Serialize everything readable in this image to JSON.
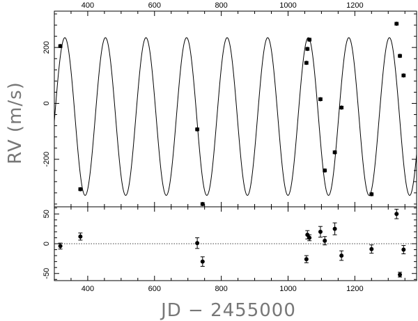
{
  "chart_data": [
    {
      "type": "scatter",
      "panel": "top",
      "ylabel": "RV (m/s)",
      "xlim": [
        300,
        1385
      ],
      "ylim": [
        -370,
        330
      ],
      "x_ticks": [
        400,
        600,
        800,
        1000,
        1200
      ],
      "x_tick_labels_on_top": [
        "400",
        "600",
        "800",
        "1000",
        "1200"
      ],
      "y_ticks": [
        -200,
        0,
        200
      ],
      "y_tick_labels": [
        "-200",
        "0",
        "200"
      ],
      "grid": false,
      "model_curve": {
        "type": "line",
        "period": 121.5,
        "amplitude": 282,
        "offset": -47,
        "x_peak": 453
      },
      "series": [
        {
          "x": [
            318,
            378,
            728,
            744,
            1055,
            1058,
            1064,
            1097,
            1110,
            1140,
            1160,
            1250,
            1325,
            1335,
            1346
          ],
          "y": [
            205,
            -307,
            -93,
            -360,
            145,
            195,
            228,
            15,
            -240,
            -175,
            -15,
            -325,
            285,
            170,
            100
          ],
          "yerr": [
            5,
            5,
            5,
            5,
            5,
            5,
            5,
            5,
            5,
            5,
            5,
            5,
            5,
            5,
            5
          ]
        }
      ]
    },
    {
      "type": "scatter",
      "panel": "bottom",
      "xlabel": "JD − 2455000",
      "xlim": [
        300,
        1385
      ],
      "ylim": [
        -62,
        62
      ],
      "x_ticks": [
        400,
        600,
        800,
        1000,
        1200
      ],
      "x_tick_labels": [
        "400",
        "600",
        "800",
        "1000",
        "1200"
      ],
      "y_ticks": [
        -50,
        0,
        50
      ],
      "y_tick_labels": [
        "-50",
        "0",
        "50"
      ],
      "zero_line": "dotted",
      "series": [
        {
          "x": [
            318,
            378,
            728,
            744,
            1055,
            1058,
            1064,
            1097,
            1110,
            1140,
            1160,
            1250,
            1325,
            1335,
            1346
          ],
          "y": [
            -4,
            12,
            1,
            -30,
            -26,
            15,
            10,
            20,
            5,
            25,
            -20,
            -9,
            50,
            -52,
            -10
          ],
          "yerr": [
            5,
            6,
            9,
            8,
            6,
            7,
            5,
            9,
            7,
            10,
            8,
            7,
            8,
            4,
            7
          ]
        }
      ]
    }
  ]
}
